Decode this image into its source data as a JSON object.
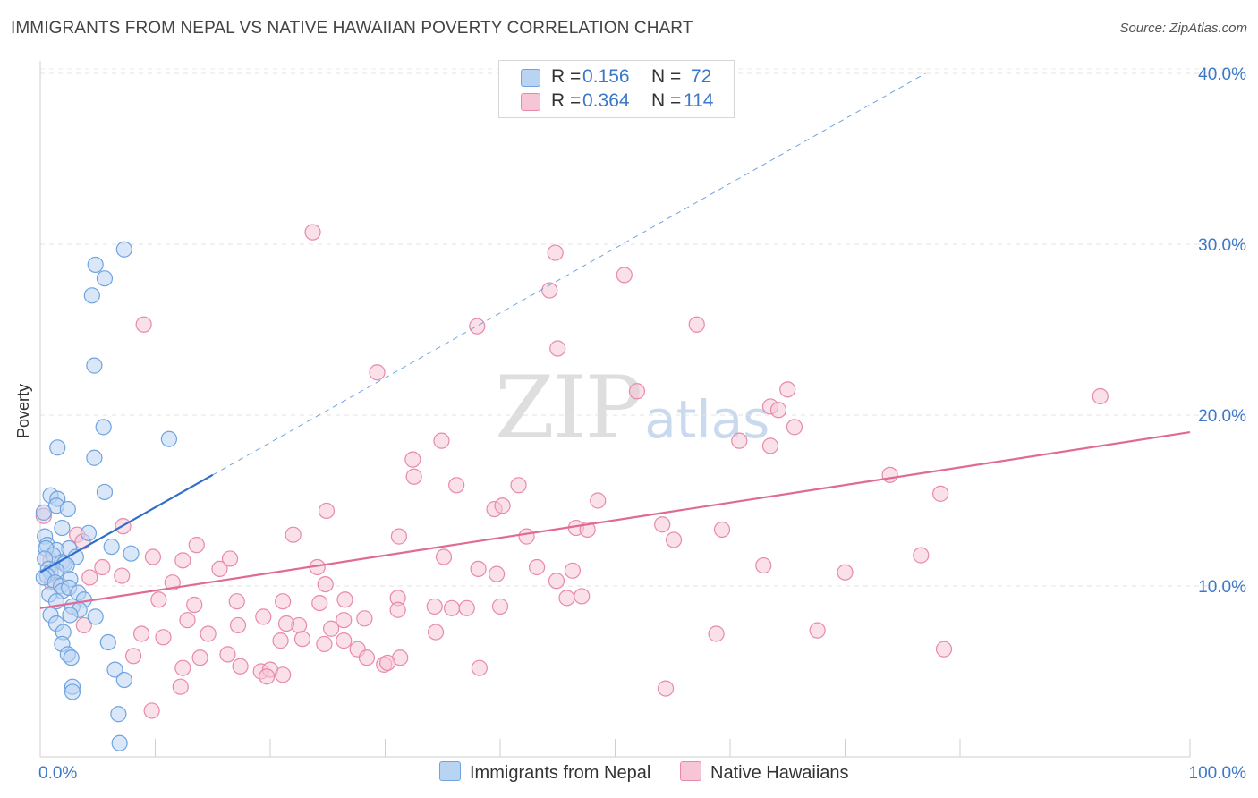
{
  "title": "IMMIGRANTS FROM NEPAL VS NATIVE HAWAIIAN POVERTY CORRELATION CHART",
  "source": "Source: ZipAtlas.com",
  "watermark": {
    "zip": "ZIP",
    "atlas": "atlas"
  },
  "colors": {
    "nepal": "#6fa3e0",
    "nepal_fill": "#b9d3f3",
    "nepal_line": "#2f6fc9",
    "hawaiian": "#e989a9",
    "hawaiian_fill": "#f6c6d6",
    "hawaiian_line": "#e06a94",
    "tick": "#3b78c8"
  },
  "legend": {
    "nepal": {
      "r_label": "R =",
      "r_value": "0.156",
      "n_label": "N =",
      "n_value": "72"
    },
    "hawaiian": {
      "r_label": "R =",
      "r_value": "0.364",
      "n_label": "N =",
      "n_value": "114"
    }
  },
  "chart_data": {
    "type": "scatter",
    "title": "IMMIGRANTS FROM NEPAL VS NATIVE HAWAIIAN POVERTY CORRELATION CHART",
    "xlabel": "",
    "ylabel": "Poverty",
    "xlim": [
      0,
      100
    ],
    "ylim": [
      0,
      42
    ],
    "x_tick_labels": [
      "0.0%",
      "100.0%"
    ],
    "y_ticks": [
      10,
      20,
      30,
      40
    ],
    "y_tick_labels": [
      "10.0%",
      "20.0%",
      "30.0%",
      "40.0%"
    ],
    "grid": true,
    "legend_position": "top-center",
    "series": [
      {
        "name": "Immigrants from Nepal",
        "r": 0.156,
        "n": 72,
        "trend": {
          "x0": 0,
          "y0": 10.8,
          "x1": 15,
          "y1": 16.5,
          "dashed_to_x": 77,
          "dashed_to_y": 40
        },
        "points": [
          [
            7.3,
            29.7
          ],
          [
            4.8,
            28.8
          ],
          [
            5.6,
            28.0
          ],
          [
            4.5,
            27.0
          ],
          [
            4.7,
            22.9
          ],
          [
            5.5,
            19.3
          ],
          [
            11.2,
            18.6
          ],
          [
            1.5,
            18.1
          ],
          [
            4.7,
            17.5
          ],
          [
            5.6,
            15.5
          ],
          [
            0.9,
            15.3
          ],
          [
            1.5,
            15.1
          ],
          [
            1.4,
            14.7
          ],
          [
            2.4,
            14.5
          ],
          [
            0.3,
            14.3
          ],
          [
            1.9,
            13.4
          ],
          [
            4.2,
            13.1
          ],
          [
            0.4,
            12.9
          ],
          [
            0.6,
            12.4
          ],
          [
            2.5,
            12.2
          ],
          [
            1.4,
            12.1
          ],
          [
            0.5,
            12.2
          ],
          [
            6.2,
            12.3
          ],
          [
            1.1,
            11.8
          ],
          [
            3.1,
            11.7
          ],
          [
            0.4,
            11.6
          ],
          [
            1.9,
            11.4
          ],
          [
            2.1,
            11.3
          ],
          [
            2.3,
            11.2
          ],
          [
            7.9,
            11.9
          ],
          [
            0.7,
            11.0
          ],
          [
            0.9,
            10.8
          ],
          [
            1.4,
            10.9
          ],
          [
            0.6,
            10.6
          ],
          [
            0.3,
            10.5
          ],
          [
            1.3,
            10.2
          ],
          [
            1.8,
            10.0
          ],
          [
            2.6,
            10.4
          ],
          [
            1.9,
            9.7
          ],
          [
            2.5,
            9.9
          ],
          [
            3.3,
            9.6
          ],
          [
            0.8,
            9.5
          ],
          [
            3.8,
            9.2
          ],
          [
            1.4,
            9.1
          ],
          [
            2.8,
            8.8
          ],
          [
            3.4,
            8.6
          ],
          [
            2.6,
            8.3
          ],
          [
            0.9,
            8.3
          ],
          [
            4.8,
            8.2
          ],
          [
            1.4,
            7.8
          ],
          [
            2.0,
            7.3
          ],
          [
            1.9,
            6.6
          ],
          [
            5.9,
            6.7
          ],
          [
            2.4,
            6.0
          ],
          [
            2.7,
            5.8
          ],
          [
            6.5,
            5.1
          ],
          [
            7.3,
            4.5
          ],
          [
            2.8,
            4.1
          ],
          [
            2.8,
            3.8
          ],
          [
            6.8,
            2.5
          ],
          [
            6.9,
            0.8
          ]
        ]
      },
      {
        "name": "Native Hawaiians",
        "r": 0.364,
        "n": 114,
        "trend": {
          "x0": 0,
          "y0": 8.7,
          "x1": 100,
          "y1": 19.0
        },
        "points": [
          [
            23.7,
            30.7
          ],
          [
            44.8,
            29.5
          ],
          [
            50.8,
            28.2
          ],
          [
            44.3,
            27.3
          ],
          [
            9.0,
            25.3
          ],
          [
            38.0,
            25.2
          ],
          [
            57.1,
            25.3
          ],
          [
            45.0,
            23.9
          ],
          [
            29.3,
            22.5
          ],
          [
            51.9,
            21.4
          ],
          [
            65.0,
            21.5
          ],
          [
            63.5,
            20.5
          ],
          [
            92.2,
            21.1
          ],
          [
            64.2,
            20.3
          ],
          [
            65.6,
            19.3
          ],
          [
            34.9,
            18.5
          ],
          [
            60.8,
            18.5
          ],
          [
            63.5,
            18.2
          ],
          [
            32.4,
            17.4
          ],
          [
            32.5,
            16.4
          ],
          [
            41.6,
            15.9
          ],
          [
            73.9,
            16.5
          ],
          [
            48.5,
            15.0
          ],
          [
            39.5,
            14.5
          ],
          [
            40.2,
            14.7
          ],
          [
            24.9,
            14.4
          ],
          [
            78.3,
            15.4
          ],
          [
            36.2,
            15.9
          ],
          [
            54.1,
            13.6
          ],
          [
            46.6,
            13.4
          ],
          [
            47.6,
            13.3
          ],
          [
            59.3,
            13.3
          ],
          [
            7.2,
            13.5
          ],
          [
            3.2,
            13.0
          ],
          [
            3.7,
            12.6
          ],
          [
            22.0,
            13.0
          ],
          [
            31.2,
            12.9
          ],
          [
            42.3,
            12.9
          ],
          [
            55.1,
            12.7
          ],
          [
            13.6,
            12.4
          ],
          [
            16.5,
            11.6
          ],
          [
            9.8,
            11.7
          ],
          [
            12.4,
            11.5
          ],
          [
            35.1,
            11.7
          ],
          [
            62.9,
            11.2
          ],
          [
            76.6,
            11.8
          ],
          [
            24.1,
            11.1
          ],
          [
            15.6,
            11.0
          ],
          [
            5.4,
            11.1
          ],
          [
            38.1,
            11.0
          ],
          [
            39.7,
            10.7
          ],
          [
            43.2,
            11.1
          ],
          [
            46.3,
            10.9
          ],
          [
            70.0,
            10.8
          ],
          [
            7.1,
            10.6
          ],
          [
            4.3,
            10.5
          ],
          [
            1.0,
            10.2
          ],
          [
            24.8,
            10.1
          ],
          [
            44.9,
            10.3
          ],
          [
            11.5,
            10.2
          ],
          [
            10.3,
            9.2
          ],
          [
            13.4,
            8.9
          ],
          [
            17.1,
            9.1
          ],
          [
            26.5,
            9.2
          ],
          [
            31.1,
            9.3
          ],
          [
            34.3,
            8.8
          ],
          [
            35.8,
            8.7
          ],
          [
            37.1,
            8.7
          ],
          [
            45.8,
            9.3
          ],
          [
            47.1,
            9.4
          ],
          [
            21.1,
            9.1
          ],
          [
            24.3,
            9.0
          ],
          [
            31.1,
            8.6
          ],
          [
            40.0,
            8.8
          ],
          [
            12.8,
            8.0
          ],
          [
            19.4,
            8.2
          ],
          [
            26.4,
            8.0
          ],
          [
            28.2,
            8.1
          ],
          [
            3.8,
            7.7
          ],
          [
            17.2,
            7.7
          ],
          [
            22.5,
            7.7
          ],
          [
            21.4,
            7.8
          ],
          [
            25.3,
            7.5
          ],
          [
            34.4,
            7.3
          ],
          [
            14.6,
            7.2
          ],
          [
            8.8,
            7.2
          ],
          [
            10.7,
            7.0
          ],
          [
            22.8,
            6.9
          ],
          [
            20.9,
            6.8
          ],
          [
            26.4,
            6.8
          ],
          [
            27.6,
            6.3
          ],
          [
            24.7,
            6.6
          ],
          [
            28.4,
            5.8
          ],
          [
            29.9,
            5.4
          ],
          [
            31.3,
            5.8
          ],
          [
            13.9,
            5.8
          ],
          [
            16.3,
            6.0
          ],
          [
            8.1,
            5.9
          ],
          [
            12.4,
            5.2
          ],
          [
            17.4,
            5.3
          ],
          [
            19.2,
            5.0
          ],
          [
            20.0,
            5.1
          ],
          [
            21.1,
            4.8
          ],
          [
            19.7,
            4.7
          ],
          [
            30.2,
            5.5
          ],
          [
            38.2,
            5.2
          ],
          [
            58.8,
            7.2
          ],
          [
            67.6,
            7.4
          ],
          [
            78.6,
            6.3
          ],
          [
            54.4,
            4.0
          ],
          [
            12.2,
            4.1
          ],
          [
            9.7,
            2.7
          ],
          [
            0.3,
            14.1
          ],
          [
            0.9,
            11.5
          ]
        ]
      }
    ]
  }
}
